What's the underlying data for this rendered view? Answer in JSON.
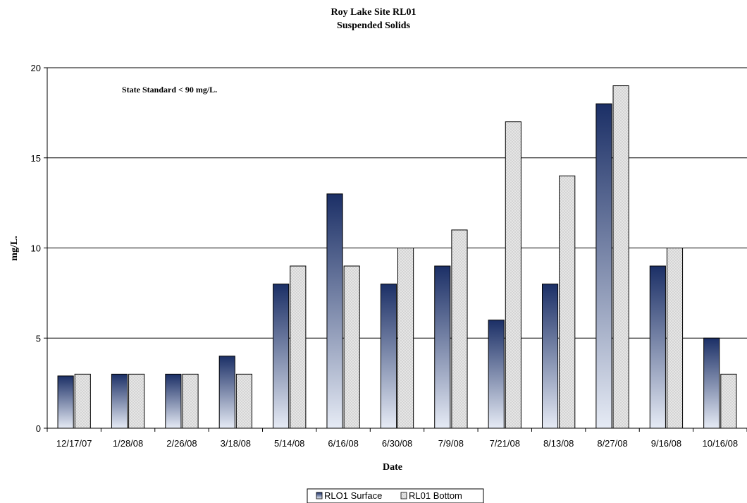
{
  "chart_data": {
    "type": "bar",
    "title": "Roy Lake Site RL01",
    "subtitle": "Suspended Solids",
    "xlabel": "Date",
    "ylabel": "mg/L.",
    "annotation": "State Standard < 90 mg/L.",
    "categories": [
      "12/17/07",
      "1/28/08",
      "2/26/08",
      "3/18/08",
      "5/14/08",
      "6/16/08",
      "6/30/08",
      "7/9/08",
      "7/21/08",
      "8/13/08",
      "8/27/08",
      "9/16/08",
      "10/16/08"
    ],
    "series": [
      {
        "name": "RLO1 Surface",
        "values": [
          2.9,
          3,
          3,
          4,
          8,
          13,
          8,
          9,
          6,
          8,
          18,
          9,
          5
        ]
      },
      {
        "name": "RL01 Bottom",
        "values": [
          3,
          3,
          3,
          3,
          9,
          9,
          10,
          11,
          17,
          14,
          19,
          10,
          3
        ]
      }
    ],
    "ylim": [
      0,
      20
    ],
    "yticks": [
      0,
      5,
      10,
      15,
      20
    ],
    "grid": true,
    "legend_position": "bottom",
    "colors": {
      "surface_top": "#1b2f66",
      "surface_bottom": "#e6ebf5",
      "bottom_fill": "#d4d4d4",
      "bottom_dot": "#f4f4f4",
      "gridline": "#000000"
    }
  }
}
